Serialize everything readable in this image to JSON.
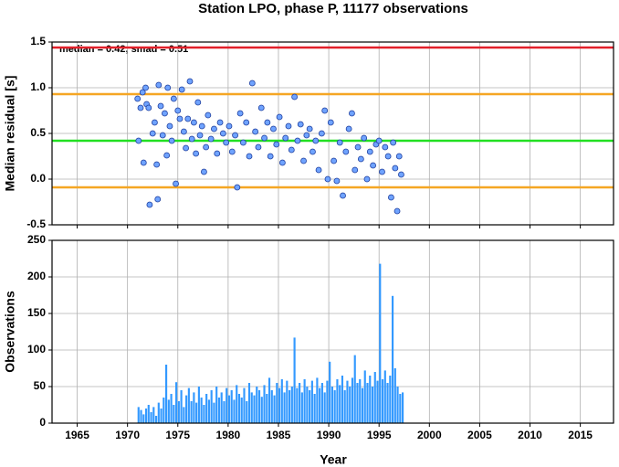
{
  "chart_data": [
    {
      "type": "scatter",
      "title": "Station LPO, phase P, 11177 observations",
      "y_label": "Median residual [s]",
      "annotation": "median = 0.42, smad = 0.51",
      "xlim": [
        1962.5,
        2018.3
      ],
      "ylim": [
        -0.5,
        1.5
      ],
      "xticks": [
        1965,
        1970,
        1975,
        1980,
        1985,
        1990,
        1995,
        2000,
        2005,
        2010,
        2015
      ],
      "yticks": [
        -0.5,
        {
          "value": 0,
          "label": "0.0"
        },
        0.5,
        {
          "value": 1,
          "label": "1.0"
        },
        1.5
      ],
      "grid": true,
      "color": "#6fa3ff",
      "edge_color": "#1f3f9e",
      "hlines": [
        {
          "value": 1.44,
          "color": "#e3202a"
        },
        {
          "value": 0.93,
          "color": "#f5a623"
        },
        {
          "value": 0.42,
          "color": "#22e022"
        },
        {
          "value": -0.09,
          "color": "#f5a623"
        }
      ],
      "x": [
        1971.0,
        1971.1,
        1971.3,
        1971.5,
        1971.6,
        1971.8,
        1971.9,
        1972.1,
        1972.2,
        1972.5,
        1972.7,
        1972.9,
        1973.0,
        1973.1,
        1973.3,
        1973.5,
        1973.7,
        1973.9,
        1974.0,
        1974.2,
        1974.4,
        1974.6,
        1974.8,
        1975.0,
        1975.2,
        1975.4,
        1975.6,
        1975.8,
        1976.0,
        1976.2,
        1976.4,
        1976.6,
        1976.8,
        1977.0,
        1977.2,
        1977.4,
        1977.6,
        1977.8,
        1978.0,
        1978.3,
        1978.6,
        1978.9,
        1979.2,
        1979.5,
        1979.8,
        1980.1,
        1980.4,
        1980.7,
        1980.9,
        1981.2,
        1981.5,
        1981.8,
        1982.1,
        1982.4,
        1982.7,
        1983.0,
        1983.3,
        1983.6,
        1983.9,
        1984.2,
        1984.5,
        1984.8,
        1985.1,
        1985.4,
        1985.7,
        1986.0,
        1986.3,
        1986.6,
        1986.9,
        1987.2,
        1987.5,
        1987.8,
        1988.1,
        1988.4,
        1988.7,
        1989.0,
        1989.3,
        1989.6,
        1989.9,
        1990.2,
        1990.5,
        1990.8,
        1991.1,
        1991.4,
        1991.7,
        1992.0,
        1992.3,
        1992.6,
        1992.9,
        1993.2,
        1993.5,
        1993.8,
        1994.1,
        1994.4,
        1994.7,
        1995.0,
        1995.3,
        1995.6,
        1995.9,
        1996.2,
        1996.4,
        1996.6,
        1996.8,
        1997.0,
        1997.2
      ],
      "values": [
        0.88,
        0.42,
        0.78,
        0.95,
        0.18,
        1.0,
        0.82,
        0.78,
        -0.28,
        0.5,
        0.62,
        0.16,
        -0.22,
        1.03,
        0.8,
        0.48,
        0.72,
        0.26,
        1.0,
        0.58,
        0.42,
        0.88,
        -0.05,
        0.75,
        0.66,
        0.98,
        0.52,
        0.34,
        0.66,
        1.07,
        0.44,
        0.62,
        0.28,
        0.84,
        0.48,
        0.58,
        0.08,
        0.35,
        0.7,
        0.44,
        0.55,
        0.28,
        0.62,
        0.5,
        0.4,
        0.58,
        0.3,
        0.48,
        -0.09,
        0.72,
        0.4,
        0.62,
        0.25,
        1.05,
        0.52,
        0.35,
        0.78,
        0.45,
        0.62,
        0.25,
        0.55,
        0.38,
        0.68,
        0.18,
        0.45,
        0.58,
        0.32,
        0.9,
        0.42,
        0.6,
        0.2,
        0.48,
        0.55,
        0.3,
        0.42,
        0.1,
        0.5,
        0.75,
        0.0,
        0.62,
        0.2,
        -0.02,
        0.4,
        -0.18,
        0.3,
        0.55,
        0.72,
        0.1,
        0.35,
        0.22,
        0.45,
        0.0,
        0.3,
        0.15,
        0.38,
        0.42,
        0.08,
        0.35,
        0.25,
        -0.2,
        0.4,
        0.12,
        -0.35,
        0.25,
        0.05
      ]
    },
    {
      "type": "bar",
      "y_label": "Observations",
      "x_label": "Year",
      "xlim": [
        1962.5,
        2018.3
      ],
      "ylim": [
        0,
        250
      ],
      "xticks": [
        1965,
        1970,
        1975,
        1980,
        1985,
        1990,
        1995,
        2000,
        2005,
        2010,
        2015
      ],
      "yticks": [
        0,
        50,
        100,
        150,
        200,
        250
      ],
      "grid": true,
      "color": "#3399ff",
      "x": [
        1971.0,
        1971.25,
        1971.5,
        1971.75,
        1972.0,
        1972.25,
        1972.5,
        1972.75,
        1973.0,
        1973.25,
        1973.5,
        1973.75,
        1974.0,
        1974.25,
        1974.5,
        1974.75,
        1975.0,
        1975.25,
        1975.5,
        1975.75,
        1976.0,
        1976.25,
        1976.5,
        1976.75,
        1977.0,
        1977.25,
        1977.5,
        1977.75,
        1978.0,
        1978.25,
        1978.5,
        1978.75,
        1979.0,
        1979.25,
        1979.5,
        1979.75,
        1980.0,
        1980.25,
        1980.5,
        1980.75,
        1981.0,
        1981.25,
        1981.5,
        1981.75,
        1982.0,
        1982.25,
        1982.5,
        1982.75,
        1983.0,
        1983.25,
        1983.5,
        1983.75,
        1984.0,
        1984.25,
        1984.5,
        1984.75,
        1985.0,
        1985.25,
        1985.5,
        1985.75,
        1986.0,
        1986.25,
        1986.5,
        1986.75,
        1987.0,
        1987.25,
        1987.5,
        1987.75,
        1988.0,
        1988.25,
        1988.5,
        1988.75,
        1989.0,
        1989.25,
        1989.5,
        1989.75,
        1990.0,
        1990.25,
        1990.5,
        1990.75,
        1991.0,
        1991.25,
        1991.5,
        1991.75,
        1992.0,
        1992.25,
        1992.5,
        1992.75,
        1993.0,
        1993.25,
        1993.5,
        1993.75,
        1994.0,
        1994.25,
        1994.5,
        1994.75,
        1995.0,
        1995.25,
        1995.5,
        1995.75,
        1996.0,
        1996.25,
        1996.5,
        1996.75,
        1997.0,
        1997.25
      ],
      "values": [
        22,
        18,
        12,
        20,
        25,
        15,
        22,
        10,
        28,
        20,
        35,
        80,
        32,
        40,
        25,
        56,
        30,
        45,
        22,
        38,
        48,
        30,
        42,
        28,
        50,
        35,
        25,
        40,
        32,
        45,
        28,
        50,
        35,
        42,
        30,
        48,
        38,
        45,
        32,
        52,
        40,
        35,
        48,
        30,
        55,
        42,
        38,
        50,
        45,
        36,
        52,
        40,
        62,
        45,
        38,
        55,
        48,
        60,
        42,
        58,
        45,
        50,
        117,
        48,
        55,
        42,
        60,
        50,
        45,
        58,
        40,
        62,
        48,
        55,
        42,
        58,
        84,
        50,
        45,
        60,
        52,
        65,
        45,
        58,
        50,
        62,
        93,
        55,
        60,
        48,
        72,
        55,
        65,
        50,
        70,
        58,
        218,
        60,
        72,
        55,
        65,
        174,
        75,
        50,
        40,
        42
      ]
    }
  ]
}
